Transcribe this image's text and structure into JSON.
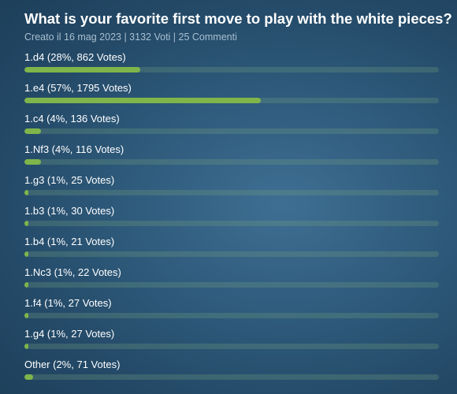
{
  "poll": {
    "title": "What is your favorite first move to play with the white pieces?",
    "meta": "Creato il 16 mag 2023 | 3132 Voti | 25 Commenti",
    "accent_color": "#7fb54a",
    "options": [
      {
        "label": "1.d4 (28%, 862 Votes)",
        "percent": 28
      },
      {
        "label": "1.e4 (57%, 1795 Votes)",
        "percent": 57
      },
      {
        "label": "1.c4 (4%, 136 Votes)",
        "percent": 4
      },
      {
        "label": "1.Nf3 (4%, 116 Votes)",
        "percent": 4
      },
      {
        "label": "1.g3 (1%, 25 Votes)",
        "percent": 1
      },
      {
        "label": "1.b3 (1%, 30 Votes)",
        "percent": 1
      },
      {
        "label": "1.b4 (1%, 21 Votes)",
        "percent": 1
      },
      {
        "label": "1.Nc3 (1%, 22 Votes)",
        "percent": 1
      },
      {
        "label": "1.f4 (1%, 27 Votes)",
        "percent": 1
      },
      {
        "label": "1.g4 (1%, 27 Votes)",
        "percent": 1
      },
      {
        "label": "Other (2%, 71 Votes)",
        "percent": 2
      }
    ]
  }
}
